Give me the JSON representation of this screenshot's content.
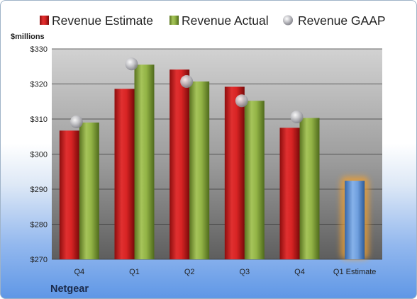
{
  "chart_data": {
    "type": "bar",
    "unit_label": "$millions",
    "categories": [
      "Q4",
      "Q1",
      "Q2",
      "Q3",
      "Q4",
      "Q1 Estimate"
    ],
    "series": [
      {
        "name": "Revenue Estimate",
        "kind": "bar",
        "color": "#cc2020",
        "values": [
          306.7,
          318.6,
          324.1,
          319.2,
          307.5,
          null
        ]
      },
      {
        "name": "Revenue Actual",
        "kind": "bar",
        "color": "#86a83c",
        "values": [
          309.0,
          325.5,
          320.7,
          315.2,
          310.3,
          null
        ]
      },
      {
        "name": "Revenue GAAP",
        "kind": "marker",
        "color": "#b8b8c0",
        "values": [
          309.2,
          325.7,
          320.7,
          315.2,
          310.6,
          null
        ]
      }
    ],
    "estimate_bar": {
      "category": "Q1 Estimate",
      "value": 292.4,
      "color": "#5b8fd0",
      "glow": "#f0a030"
    },
    "y_ticks": [
      "$270",
      "$280",
      "$290",
      "$300",
      "$310",
      "$320",
      "$330"
    ],
    "ylim": [
      270,
      330
    ],
    "grid": true,
    "legend_position": "top",
    "company": "Netgear"
  }
}
